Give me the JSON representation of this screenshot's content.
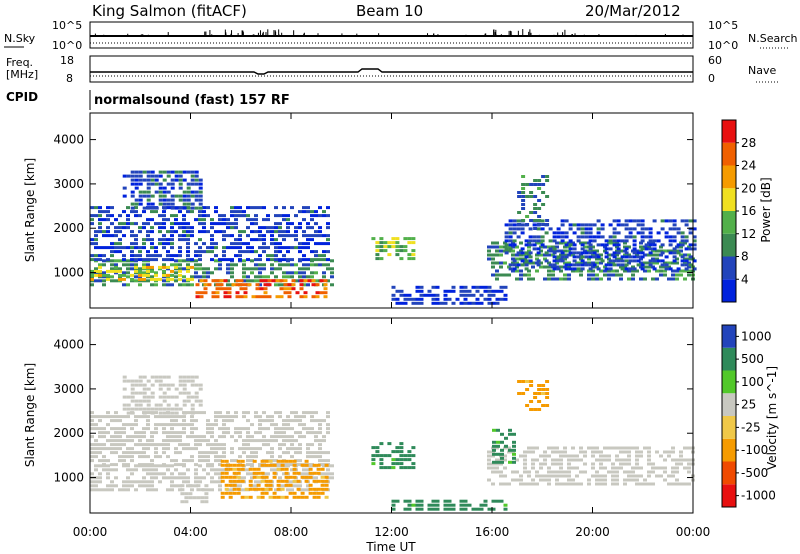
{
  "header": {
    "station": "King Salmon (fitACF)",
    "beam": "Beam 10",
    "date": "20/Mar/2012"
  },
  "noise_panel": {
    "left_label": "N.Sky",
    "left_ticks": [
      "10^5",
      "10^0"
    ],
    "right_label": "N.Search",
    "right_ticks": [
      "10^5",
      "10^0"
    ]
  },
  "freq_panel": {
    "left_label_1": "Freq.",
    "left_label_2": "[MHz]",
    "left_ticks": [
      "18",
      "8"
    ],
    "right_label": "Nave",
    "right_ticks": [
      "60",
      "0"
    ]
  },
  "cpid": {
    "label": "CPID",
    "text": "normalsound (fast) 157 RF"
  },
  "x_axis": {
    "title": "Time UT",
    "ticks": [
      "00:00",
      "04:00",
      "08:00",
      "12:00",
      "16:00",
      "20:00",
      "00:00"
    ]
  },
  "colors": {
    "power_scale": [
      "#0022dd",
      "#2244bb",
      "#3b8a52",
      "#52b04a",
      "#f0e020",
      "#f59b00",
      "#f06000",
      "#e81010"
    ],
    "velocity_scale": [
      "#e81010",
      "#f04a00",
      "#f59b00",
      "#f0c848",
      "#c8c8c0",
      "#52c82a",
      "#2f8a5a",
      "#2244bb"
    ]
  },
  "chart_data": [
    {
      "type": "heatmap",
      "title": "",
      "ylabel": "Slant Range [km]",
      "xlabel": "",
      "yticks": [
        "1000",
        "2000",
        "3000",
        "4000"
      ],
      "ylim": [
        200,
        4600
      ],
      "xlim": [
        0,
        24
      ],
      "colorbar": {
        "label": "Power [dB]",
        "ticks": [
          "4",
          "8",
          "12",
          "16",
          "20",
          "24",
          "28"
        ],
        "range": [
          0,
          32
        ]
      },
      "regions": [
        {
          "t0": 0.0,
          "t1": 9.6,
          "r0": 700,
          "r1": 1300,
          "value": 10
        },
        {
          "t0": 0.0,
          "t1": 9.5,
          "r0": 1300,
          "r1": 2500,
          "value": 5
        },
        {
          "t0": 1.3,
          "t1": 4.4,
          "r0": 2400,
          "r1": 3300,
          "value": 6
        },
        {
          "t0": 4.2,
          "t1": 9.4,
          "r0": 400,
          "r1": 850,
          "value": 26
        },
        {
          "t0": 0.0,
          "t1": 4.0,
          "r0": 850,
          "r1": 1150,
          "value": 18
        },
        {
          "t0": 11.2,
          "t1": 12.8,
          "r0": 1300,
          "r1": 1800,
          "value": 14
        },
        {
          "t0": 12.0,
          "t1": 16.5,
          "r0": 300,
          "r1": 700,
          "value": 4
        },
        {
          "t0": 15.8,
          "t1": 24.0,
          "r0": 800,
          "r1": 1700,
          "value": 10
        },
        {
          "t0": 16.5,
          "t1": 24.0,
          "r0": 1100,
          "r1": 2200,
          "value": 5
        },
        {
          "t0": 17.0,
          "t1": 18.2,
          "r0": 2000,
          "r1": 3200,
          "value": 9
        }
      ]
    },
    {
      "type": "heatmap",
      "title": "",
      "ylabel": "Slant Range [km]",
      "xlabel": "Time UT",
      "yticks": [
        "1000",
        "2000",
        "3000",
        "4000"
      ],
      "ylim": [
        200,
        4600
      ],
      "xlim": [
        0,
        24
      ],
      "colorbar": {
        "label": "Velocity [m s^-1]",
        "ticks": [
          "1000",
          "500",
          "100",
          "25",
          "-25",
          "-100",
          "-500",
          "-1000"
        ],
        "range": [
          -1500,
          1500
        ]
      },
      "regions": [
        {
          "t0": 0.0,
          "t1": 9.6,
          "r0": 700,
          "r1": 1300,
          "value": 0
        },
        {
          "t0": 0.0,
          "t1": 9.5,
          "r0": 1300,
          "r1": 2500,
          "value": 0
        },
        {
          "t0": 1.3,
          "t1": 4.4,
          "r0": 2400,
          "r1": 3300,
          "value": 0
        },
        {
          "t0": 3.6,
          "t1": 4.6,
          "r0": 400,
          "r1": 850,
          "value": 0
        },
        {
          "t0": 5.2,
          "t1": 9.4,
          "r0": 500,
          "r1": 1400,
          "value": -150
        },
        {
          "t0": 11.2,
          "t1": 12.8,
          "r0": 1200,
          "r1": 1800,
          "value": 150
        },
        {
          "t0": 12.0,
          "t1": 16.5,
          "r0": 300,
          "r1": 500,
          "value": 150
        },
        {
          "t0": 15.8,
          "t1": 24.0,
          "r0": 800,
          "r1": 1700,
          "value": 0
        },
        {
          "t0": 16.0,
          "t1": 16.8,
          "r0": 1300,
          "r1": 2100,
          "value": 150
        },
        {
          "t0": 17.0,
          "t1": 18.2,
          "r0": 2500,
          "r1": 3200,
          "value": -150
        }
      ]
    }
  ]
}
